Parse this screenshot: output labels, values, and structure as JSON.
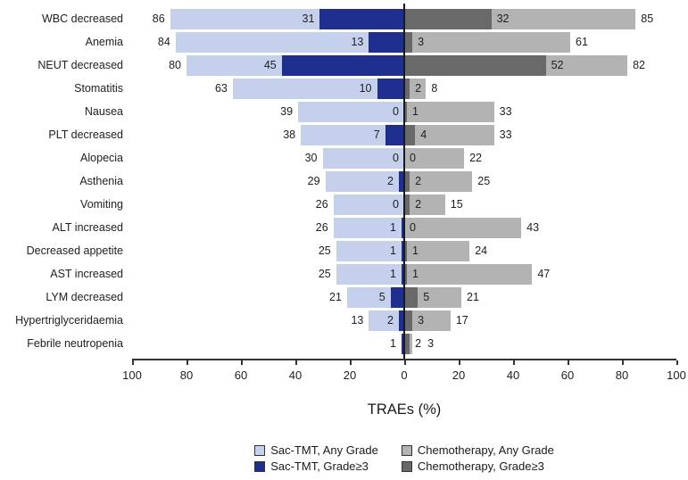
{
  "chart_data": {
    "type": "bar",
    "variant": "diverging-horizontal-overlay",
    "title": "",
    "xlabel": "TRAEs (%)",
    "xlim": [
      -100,
      100
    ],
    "grid": false,
    "axis": {
      "tick_values": [
        -100,
        -80,
        -60,
        -40,
        -20,
        0,
        20,
        40,
        60,
        80,
        100
      ],
      "tick_labels": [
        "100",
        "80",
        "60",
        "40",
        "20",
        "0",
        "20",
        "40",
        "60",
        "80",
        "100"
      ]
    },
    "categories": [
      "WBC decreased",
      "Anemia",
      "NEUT decreased",
      "Stomatitis",
      "Nausea",
      "PLT decreased",
      "Alopecia",
      "Asthenia",
      "Vomiting",
      "ALT increased",
      "Decreased appetite",
      "AST increased",
      "LYM decreased",
      "Hypertriglyceridaemia",
      "Febrile neutropenia"
    ],
    "series": [
      {
        "name": "Sac-TMT, Any Grade",
        "side": "left",
        "layer": "base",
        "color": "#c5d1ec",
        "values": [
          86,
          84,
          80,
          63,
          39,
          38,
          30,
          29,
          26,
          26,
          25,
          25,
          21,
          13,
          1
        ],
        "labels": [
          "86",
          "84",
          "80",
          "63",
          "39",
          "38",
          "30",
          "29",
          "26",
          "26",
          "25",
          "25",
          "21",
          "13",
          "1"
        ]
      },
      {
        "name": "Sac-TMT, Grade≥3",
        "side": "left",
        "layer": "overlay",
        "color": "#1e2f8f",
        "values": [
          31,
          13,
          45,
          10,
          0,
          7,
          0,
          2,
          0,
          1,
          1,
          1,
          5,
          2,
          1
        ],
        "labels": [
          "31",
          "13",
          "45",
          "10",
          "0",
          "7",
          "0",
          "2",
          "0",
          "1",
          "1",
          "1",
          "5",
          "2",
          ""
        ]
      },
      {
        "name": "Chemotherapy, Grade≥3",
        "side": "right",
        "layer": "overlay",
        "color": "#696969",
        "values": [
          32,
          3,
          52,
          2,
          1,
          4,
          0,
          2,
          2,
          0,
          1,
          1,
          5,
          3,
          2
        ],
        "labels": [
          "32",
          "3",
          "52",
          "2",
          "1",
          "4",
          "0",
          "2",
          "2",
          "0",
          "1",
          "1",
          "5",
          "3",
          "2"
        ]
      },
      {
        "name": "Chemotherapy, Any Grade",
        "side": "right",
        "layer": "base",
        "color": "#b3b3b3",
        "values": [
          85,
          61,
          82,
          8,
          33,
          33,
          22,
          25,
          15,
          43,
          24,
          47,
          21,
          17,
          3
        ],
        "labels": [
          "85",
          "61",
          "82",
          "8",
          "33",
          "33",
          "22",
          "25",
          "15",
          "43",
          "24",
          "47",
          "21",
          "17",
          "3"
        ]
      }
    ],
    "legend": {
      "position": "bottom",
      "columns": [
        {
          "items": [
            {
              "label": "Sac-TMT, Any Grade",
              "color": "#c5d1ec"
            },
            {
              "label": "Sac-TMT, Grade≥3",
              "color": "#1e2f8f"
            }
          ]
        },
        {
          "items": [
            {
              "label": "Chemotherapy, Any Grade",
              "color": "#b3b3b3"
            },
            {
              "label": "Chemotherapy, Grade≥3",
              "color": "#696969"
            }
          ]
        }
      ]
    }
  }
}
